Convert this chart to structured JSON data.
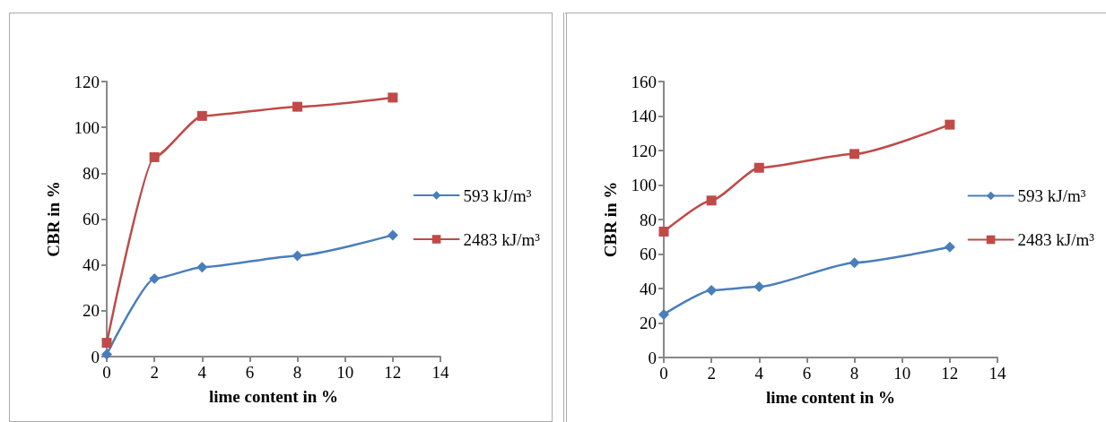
{
  "chart_data": [
    {
      "type": "line",
      "xlabel": "lime content in %",
      "ylabel": "CBR in %",
      "x": [
        0,
        2,
        4,
        8,
        12
      ],
      "xlim": [
        0,
        14
      ],
      "xticks": [
        0,
        2,
        4,
        6,
        8,
        10,
        12,
        14
      ],
      "ylim": [
        0,
        120
      ],
      "yticks": [
        0,
        20,
        40,
        60,
        80,
        100,
        120
      ],
      "grid": false,
      "legend": "right",
      "line_style": "solid",
      "series": [
        {
          "name": "593 kJ/m³",
          "color": "#4a7ebb",
          "marker": "diamond",
          "values": [
            1,
            34,
            39,
            44,
            53
          ]
        },
        {
          "name": "2483 kJ/m³",
          "color": "#be4b48",
          "marker": "square",
          "values": [
            6,
            87,
            105,
            109,
            113
          ]
        }
      ]
    },
    {
      "type": "line",
      "xlabel": "lime content in %",
      "ylabel": "CBR in %",
      "x": [
        0,
        2,
        4,
        8,
        12
      ],
      "xlim": [
        0,
        14
      ],
      "xticks": [
        0,
        2,
        4,
        6,
        8,
        10,
        12,
        14
      ],
      "ylim": [
        0,
        160
      ],
      "yticks": [
        0,
        20,
        40,
        60,
        80,
        100,
        120,
        140,
        160
      ],
      "grid": false,
      "legend": "right",
      "line_style": "solid",
      "series": [
        {
          "name": "593 kJ/m³",
          "color": "#4a7ebb",
          "marker": "diamond",
          "values": [
            25,
            39,
            41,
            55,
            64
          ]
        },
        {
          "name": "2483 kJ/m³",
          "color": "#be4b48",
          "marker": "square",
          "values": [
            73,
            91,
            110,
            118,
            135
          ]
        }
      ]
    }
  ]
}
